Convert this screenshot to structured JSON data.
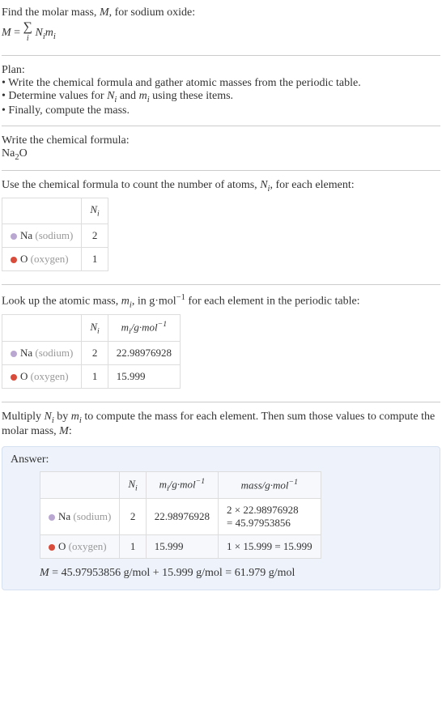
{
  "intro": {
    "line1_pre": "Find the molar mass, ",
    "line1_var": "M",
    "line1_post": ", for sodium oxide:",
    "eq_M": "M",
    "eq_eq": " = ",
    "eq_sigma": "∑",
    "eq_i": "i",
    "eq_Ni": "N",
    "eq_Ni_i": "i",
    "eq_mi": "m",
    "eq_mi_i": "i"
  },
  "plan": {
    "title": "Plan:",
    "b1": "• Write the chemical formula and gather atomic masses from the periodic table.",
    "b2_pre": "• Determine values for ",
    "b2_N": "N",
    "b2_Ni": "i",
    "b2_mid": " and ",
    "b2_m": "m",
    "b2_mi": "i",
    "b2_post": " using these items.",
    "b3": "• Finally, compute the mass."
  },
  "chem": {
    "title": "Write the chemical formula:",
    "na": "Na",
    "sub2": "2",
    "o": "O"
  },
  "count": {
    "title_pre": "Use the chemical formula to count the number of atoms, ",
    "title_N": "N",
    "title_i": "i",
    "title_post": ", for each element:",
    "header_N": "N",
    "header_i": "i",
    "rows": [
      {
        "color": "#b9a7d1",
        "sym": "Na",
        "name": "(sodium)",
        "n": "2"
      },
      {
        "color": "#d94b3a",
        "sym": "O",
        "name": "(oxygen)",
        "n": "1"
      }
    ]
  },
  "lookup": {
    "title_pre": "Look up the atomic mass, ",
    "title_m": "m",
    "title_i": "i",
    "title_mid": ", in g·mol",
    "title_exp": "−1",
    "title_post": " for each element in the periodic table:",
    "hdr_N": "N",
    "hdr_Ni": "i",
    "hdr_m": "m",
    "hdr_mi": "i",
    "hdr_unit": "/g·mol",
    "hdr_exp": "−1",
    "rows": [
      {
        "color": "#b9a7d1",
        "sym": "Na",
        "name": "(sodium)",
        "n": "2",
        "m": "22.98976928"
      },
      {
        "color": "#d94b3a",
        "sym": "O",
        "name": "(oxygen)",
        "n": "1",
        "m": "15.999"
      }
    ]
  },
  "multiply": {
    "line_pre": "Multiply ",
    "line_N": "N",
    "line_Ni": "i",
    "line_mid": " by ",
    "line_m": "m",
    "line_mi": "i",
    "line_post": " to compute the mass for each element. Then sum those values to compute the molar mass, ",
    "line_M": "M",
    "line_end": ":"
  },
  "answer": {
    "label": "Answer:",
    "hdr_N": "N",
    "hdr_Ni": "i",
    "hdr_m": "m",
    "hdr_mi": "i",
    "hdr_munit": "/g·mol",
    "hdr_mexp": "−1",
    "hdr_mass": "mass/g·mol",
    "hdr_massexp": "−1",
    "rows": [
      {
        "color": "#b9a7d1",
        "sym": "Na",
        "name": "(sodium)",
        "n": "2",
        "m": "22.98976928",
        "mass1": "2 × 22.98976928",
        "mass2": "= 45.97953856"
      },
      {
        "color": "#d94b3a",
        "sym": "O",
        "name": "(oxygen)",
        "n": "1",
        "m": "15.999",
        "mass1": "1 × 15.999 = 15.999",
        "mass2": ""
      }
    ],
    "final_M": "M",
    "final_rest": " = 45.97953856 g/mol + 15.999 g/mol = 61.979 g/mol"
  }
}
